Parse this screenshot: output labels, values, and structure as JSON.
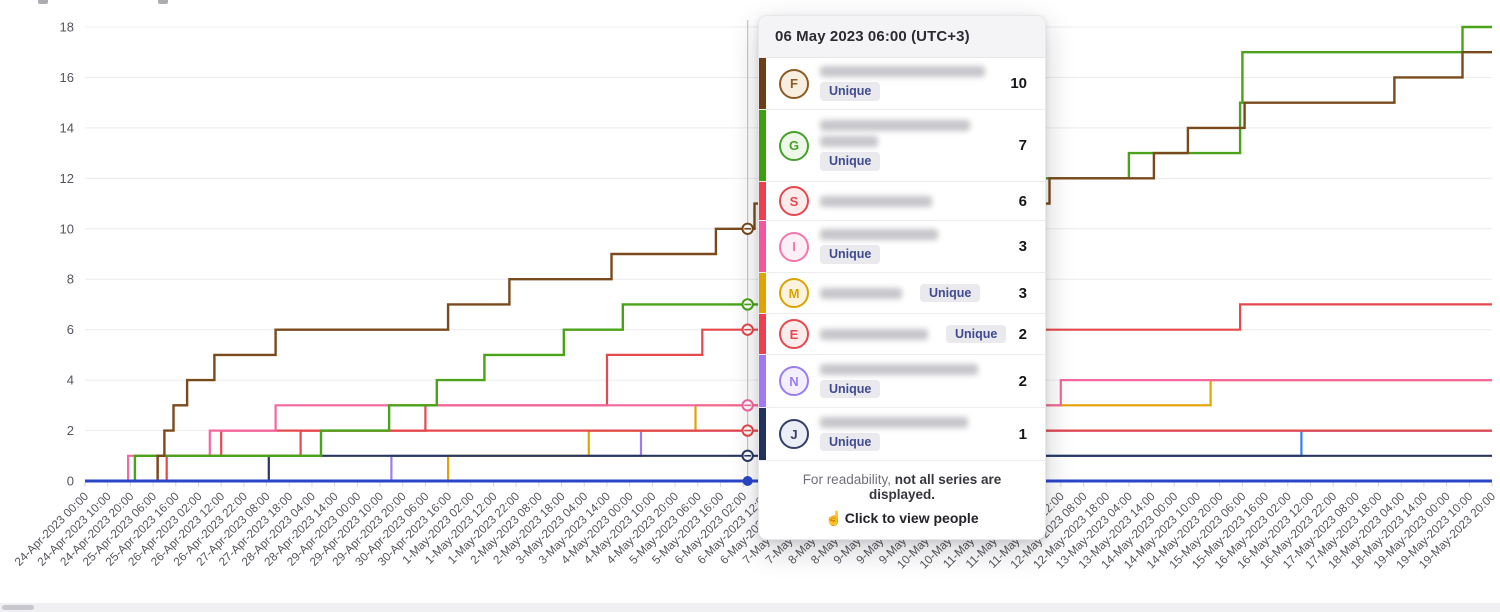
{
  "tooltip": {
    "header": "06 May 2023 06:00 (UTC+3)",
    "unique_label": "Unique",
    "footer_normal": "For readability, ",
    "footer_bold": "not all series are displayed.",
    "footer_cta": "Click to view people",
    "rows": [
      {
        "letter": "F",
        "value": "10",
        "badge_color": "#8f5b22",
        "badge_bg": "#f8efe1",
        "strip": "#6f3e16",
        "height": 52,
        "name_lines": [
          [
            165
          ]
        ],
        "unique": "below"
      },
      {
        "letter": "G",
        "value": "7",
        "badge_color": "#46a12b",
        "badge_bg": "#eef8e9",
        "strip": "#3da00e",
        "height": 72,
        "name_lines": [
          [
            150
          ],
          [
            58
          ]
        ],
        "unique": "below"
      },
      {
        "letter": "S",
        "value": "6",
        "badge_color": "#e5484d",
        "badge_bg": "#fdecec",
        "strip": "#ef3f4e",
        "height": 39,
        "name_lines": [
          [
            112
          ]
        ],
        "unique": "none"
      },
      {
        "letter": "I",
        "value": "3",
        "badge_color": "#f277ae",
        "badge_bg": "#fdeff6",
        "strip": "#f4569d",
        "height": 52,
        "name_lines": [
          [
            118
          ]
        ],
        "unique": "below"
      },
      {
        "letter": "M",
        "value": "3",
        "badge_color": "#d9a300",
        "badge_bg": "#fbf3dd",
        "strip": "#e0a400",
        "height": 41,
        "name_lines": [
          [
            82
          ]
        ],
        "unique": "inline"
      },
      {
        "letter": "E",
        "value": "2",
        "badge_color": "#e5484d",
        "badge_bg": "#fdecec",
        "strip": "#ef3f4e",
        "height": 41,
        "name_lines": [
          [
            108
          ]
        ],
        "unique": "inline"
      },
      {
        "letter": "N",
        "value": "2",
        "badge_color": "#9b7df2",
        "badge_bg": "#f3effe",
        "strip": "#a078f5",
        "height": 53,
        "name_lines": [
          [
            158
          ]
        ],
        "unique": "below"
      },
      {
        "letter": "J",
        "value": "1",
        "badge_color": "#333f66",
        "badge_bg": "#eceef5",
        "strip": "#20315e",
        "height": 53,
        "name_lines": [
          [
            148
          ]
        ],
        "unique": "below"
      }
    ]
  },
  "chart_data": {
    "type": "line",
    "step": true,
    "title": "",
    "xlabel": "",
    "ylabel": "",
    "ylim": [
      0,
      18
    ],
    "yticks": [
      0,
      2,
      4,
      6,
      8,
      10,
      12,
      14,
      16,
      18
    ],
    "grid": true,
    "legend_position": "none",
    "x_hours_max": 620,
    "x_tick_interval_hours": 10,
    "x_tick_labels": [
      "24-Apr-2023 00:00",
      "24-Apr-2023 10:00",
      "24-Apr-2023 20:00",
      "25-Apr-2023 06:00",
      "25-Apr-2023 16:00",
      "26-Apr-2023 02:00",
      "26-Apr-2023 12:00",
      "26-Apr-2023 22:00",
      "27-Apr-2023 08:00",
      "27-Apr-2023 18:00",
      "28-Apr-2023 04:00",
      "28-Apr-2023 14:00",
      "29-Apr-2023 00:00",
      "29-Apr-2023 10:00",
      "29-Apr-2023 20:00",
      "30-Apr-2023 06:00",
      "30-Apr-2023 16:00",
      "1-May-2023 02:00",
      "1-May-2023 12:00",
      "1-May-2023 22:00",
      "2-May-2023 08:00",
      "2-May-2023 18:00",
      "3-May-2023 04:00",
      "3-May-2023 14:00",
      "4-May-2023 00:00",
      "4-May-2023 10:00",
      "4-May-2023 20:00",
      "5-May-2023 06:00",
      "5-May-2023 16:00",
      "6-May-2023 02:00",
      "6-May-2023 12:00",
      "6-May-2023 22:00",
      "7-May-2023 08:00",
      "7-May-2023 18:00",
      "8-May-2023 04:00",
      "8-May-2023 14:00",
      "9-May-2023 00:00",
      "9-May-2023 10:00",
      "9-May-2023 20:00",
      "10-May-2023 06:00",
      "10-May-2023 16:00",
      "11-May-2023 02:00",
      "11-May-2023 12:00",
      "11-May-2023 22:00",
      "12-May-2023 08:00",
      "12-May-2023 18:00",
      "13-May-2023 04:00",
      "13-May-2023 14:00",
      "14-May-2023 00:00",
      "14-May-2023 10:00",
      "14-May-2023 20:00",
      "15-May-2023 06:00",
      "15-May-2023 16:00",
      "16-May-2023 02:00",
      "16-May-2023 12:00",
      "16-May-2023 22:00",
      "17-May-2023 08:00",
      "17-May-2023 18:00",
      "18-May-2023 04:00",
      "18-May-2023 14:00",
      "19-May-2023 00:00",
      "19-May-2023 10:00",
      "19-May-2023 20:00"
    ],
    "plot": {
      "x0": 85,
      "x1": 1492,
      "y0": 481,
      "y1": 27
    },
    "series": [
      {
        "name": "light-blue",
        "color": "#2f81f7",
        "width": 2.2,
        "steps": [
          [
            0,
            0
          ],
          [
            400,
            1
          ],
          [
            536,
            2
          ]
        ]
      },
      {
        "name": "purple-N",
        "color": "#9b7df2",
        "width": 2.2,
        "steps": [
          [
            0,
            0
          ],
          [
            135,
            1
          ],
          [
            245,
            2
          ]
        ]
      },
      {
        "name": "amber-M",
        "color": "#e3a400",
        "width": 2.2,
        "steps": [
          [
            0,
            0
          ],
          [
            160,
            1
          ],
          [
            222,
            2
          ],
          [
            269,
            3
          ],
          [
            496,
            4
          ]
        ]
      },
      {
        "name": "navy-J",
        "color": "#2a3860",
        "width": 2.2,
        "steps": [
          [
            0,
            0
          ],
          [
            81,
            1
          ]
        ]
      },
      {
        "name": "red-E",
        "color": "#e5484d",
        "width": 2.2,
        "steps": [
          [
            0,
            0
          ],
          [
            36,
            1
          ],
          [
            60,
            2
          ]
        ]
      },
      {
        "name": "red-S",
        "color": "#e5484d",
        "width": 2.2,
        "steps": [
          [
            0,
            0
          ],
          [
            32,
            1
          ],
          [
            95,
            2
          ],
          [
            150,
            3
          ],
          [
            230,
            5
          ],
          [
            272,
            6
          ],
          [
            509,
            7
          ]
        ]
      },
      {
        "name": "pink-I",
        "color": "#f4679f",
        "width": 2.2,
        "steps": [
          [
            0,
            0
          ],
          [
            19,
            1
          ],
          [
            55,
            2
          ],
          [
            84,
            3
          ],
          [
            430,
            4
          ]
        ]
      },
      {
        "name": "green-G",
        "color": "#4aa318",
        "width": 2.4,
        "steps": [
          [
            0,
            0
          ],
          [
            22,
            1
          ],
          [
            104,
            2
          ],
          [
            134,
            3
          ],
          [
            155,
            4
          ],
          [
            176,
            5
          ],
          [
            211,
            6
          ],
          [
            237,
            7
          ],
          [
            310,
            8
          ],
          [
            330,
            9
          ],
          [
            350,
            10
          ],
          [
            370,
            11
          ],
          [
            395,
            12
          ],
          [
            460,
            13
          ],
          [
            509,
            15
          ],
          [
            510,
            17
          ],
          [
            607,
            18
          ]
        ]
      },
      {
        "name": "brown-F",
        "color": "#7a4a1c",
        "width": 2.4,
        "steps": [
          [
            0,
            0
          ],
          [
            32,
            1
          ],
          [
            35,
            2
          ],
          [
            39,
            3
          ],
          [
            45,
            4
          ],
          [
            57,
            5
          ],
          [
            84,
            6
          ],
          [
            160,
            7
          ],
          [
            187,
            8
          ],
          [
            232,
            9
          ],
          [
            278,
            10
          ],
          [
            295,
            11
          ],
          [
            425,
            12
          ],
          [
            471,
            13
          ],
          [
            486,
            14
          ],
          [
            511,
            15
          ],
          [
            577,
            16
          ],
          [
            607,
            17
          ]
        ]
      },
      {
        "name": "blue-baseline",
        "color": "#2946cb",
        "width": 3,
        "steps": [
          [
            0,
            0
          ]
        ]
      }
    ],
    "hover": {
      "t": 292,
      "line_color": "#c7c7cd",
      "markers": [
        {
          "v": 10,
          "color": "#7a4a1c",
          "filled": false
        },
        {
          "v": 7,
          "color": "#4aa318",
          "filled": false
        },
        {
          "v": 6,
          "color": "#e5484d",
          "filled": false
        },
        {
          "v": 3,
          "color": "#f4679f",
          "filled": false
        },
        {
          "v": 2,
          "color": "#e5484d",
          "filled": false
        },
        {
          "v": 1,
          "color": "#2a3860",
          "filled": false
        },
        {
          "v": 0,
          "color": "#2946cb",
          "filled": true
        }
      ]
    },
    "axis_label_color": "#55555e",
    "grid_color": "#ececef",
    "tick_color": "#d9d9de"
  }
}
